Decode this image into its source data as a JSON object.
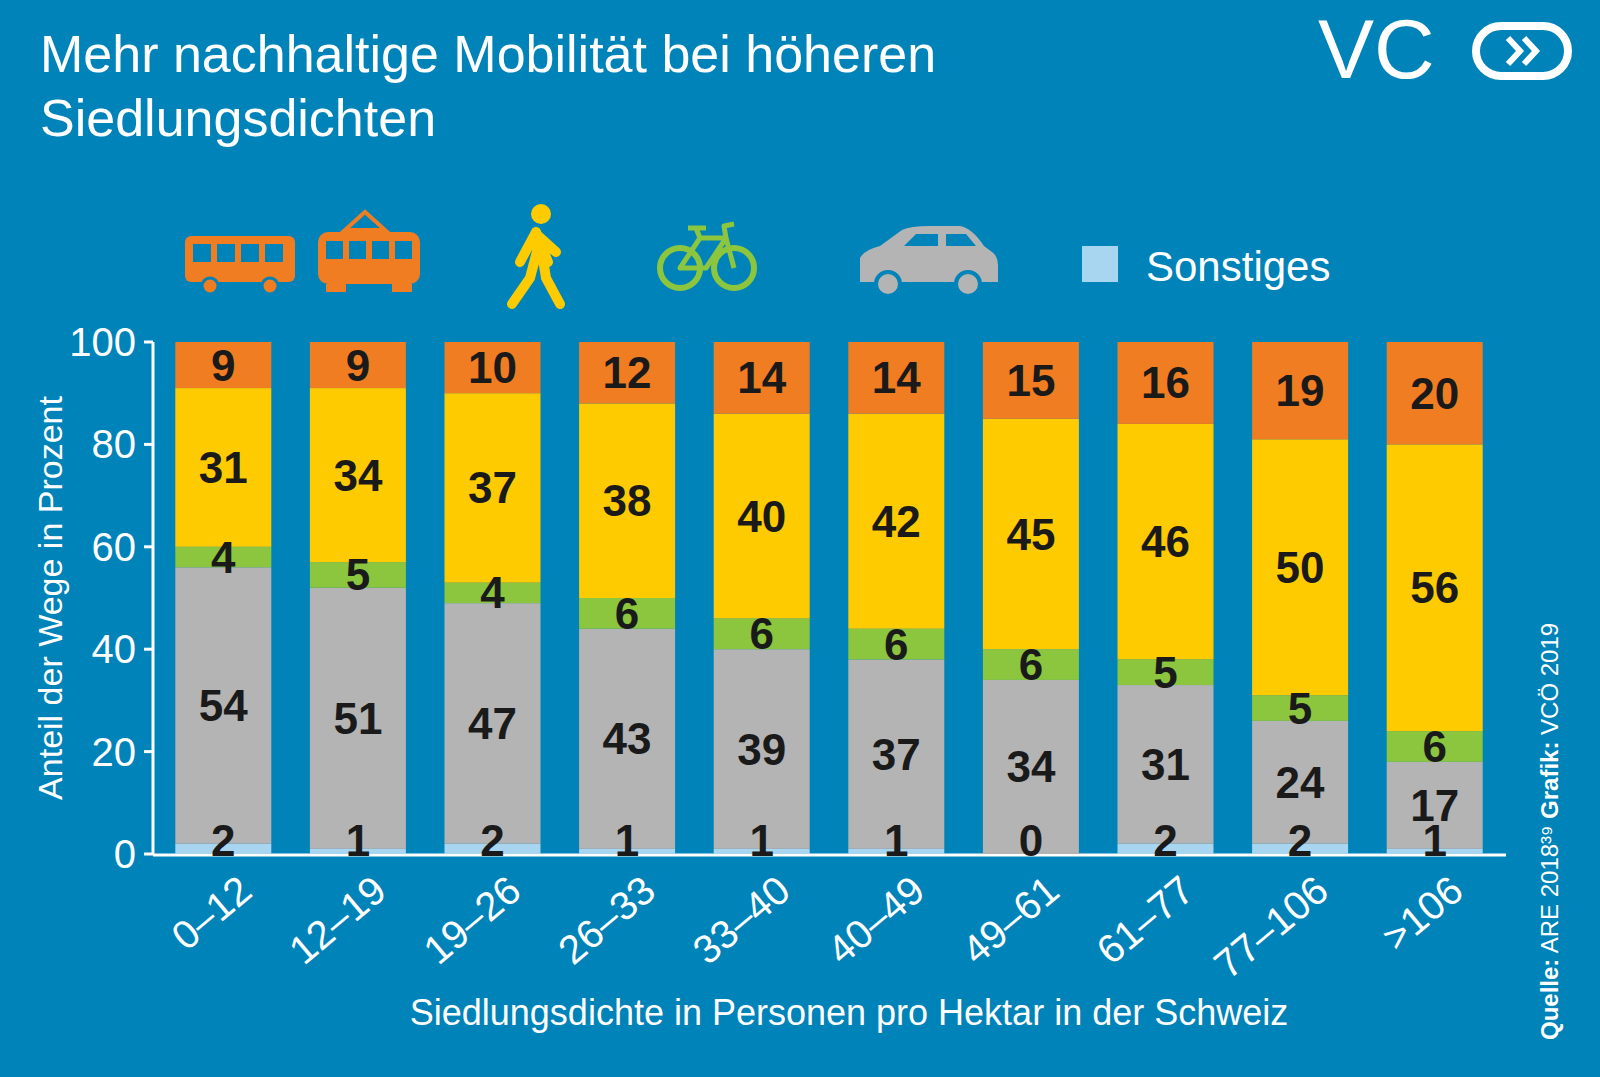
{
  "chart_data": {
    "type": "bar",
    "stacked": true,
    "data_labels": true,
    "grid": false,
    "title": "Mehr nachhaltige Mobilität bei höheren Siedlungsdichten",
    "logo": "VC",
    "x_label": "Siedlungsdichte in Personen pro Hektar in der Schweiz",
    "y_label": "Anteil der Wege in Prozent",
    "annotations": [
      "Quelle:",
      "ARE 2018³⁹",
      "Grafik:",
      "VCÖ 2019"
    ],
    "categories": [
      "0–12",
      "12–19",
      "19–26",
      "26–33",
      "33–40",
      "40–49",
      "49–61",
      "61–77",
      "77–106",
      ">106"
    ],
    "ylim": [
      0,
      100
    ],
    "yticks": [
      0,
      20,
      40,
      60,
      80,
      100
    ],
    "series": [
      {
        "name": "Sonstiges",
        "color": "#a8d5f0",
        "values": [
          2,
          1,
          2,
          1,
          1,
          1,
          0,
          2,
          2,
          1
        ]
      },
      {
        "color": "#b4b4b4",
        "values": [
          54,
          51,
          47,
          43,
          39,
          37,
          34,
          31,
          24,
          17
        ]
      },
      {
        "color": "#8cc63e",
        "values": [
          4,
          5,
          4,
          6,
          6,
          6,
          6,
          5,
          5,
          6
        ]
      },
      {
        "color": "#fecb00",
        "values": [
          31,
          34,
          37,
          38,
          40,
          42,
          45,
          46,
          50,
          56
        ]
      },
      {
        "color": "#f07d22",
        "values": [
          9,
          9,
          10,
          12,
          14,
          14,
          15,
          16,
          19,
          20
        ]
      }
    ]
  }
}
